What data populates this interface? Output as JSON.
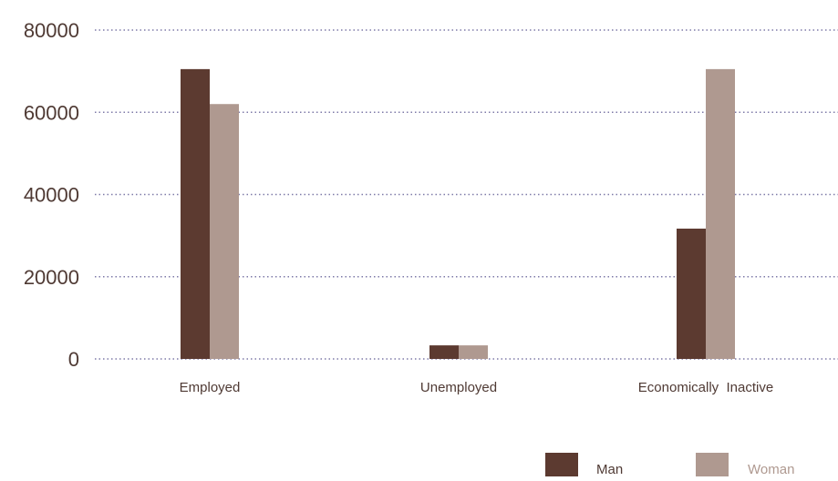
{
  "chart_data": {
    "type": "bar",
    "categories": [
      "Employed",
      "Unemployed",
      "Economically  Inactive"
    ],
    "series": [
      {
        "name": "Man",
        "values": [
          70500,
          3300,
          31700
        ],
        "color": "#5c3a30"
      },
      {
        "name": "Woman",
        "values": [
          62000,
          3300,
          70500
        ],
        "color": "#af9990"
      }
    ],
    "yticks": [
      "0",
      "20000",
      "40000",
      "60000",
      "80000"
    ],
    "ylim": [
      0,
      80000
    ],
    "grid": true,
    "legend_position": "bottom-right",
    "legend_label_colors": [
      "#4f3a34",
      "#af9990"
    ]
  }
}
